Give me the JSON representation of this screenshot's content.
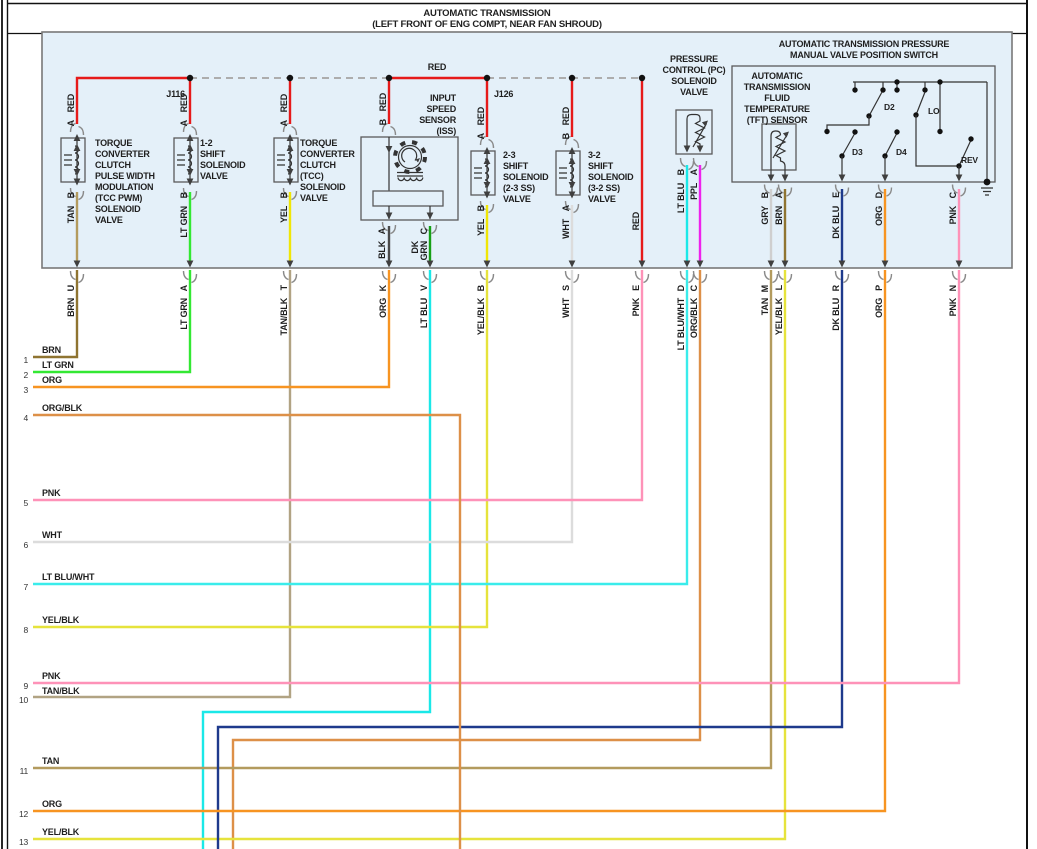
{
  "page": {
    "title_line1": "AUTOMATIC TRANSMISSION",
    "title_line2": "(LEFT FRONT OF ENG COMPT, NEAR FAN SHROUD)"
  },
  "junctions": {
    "j116": "J116",
    "j126": "J126",
    "bus_label": "RED"
  },
  "colors": {
    "red": "#e61a1a",
    "brn": "#8f7431",
    "lt_grn": "#33e833",
    "tan_blk": "#b1a383",
    "org": "#f79421",
    "lt_blu": "#1ae8e8",
    "lt_blu_wht": "#3aeceb",
    "yel_blk": "#e6e33c",
    "wht": "#dcdcdc",
    "pnk": "#fe92b8",
    "org_blk": "#dd9048",
    "tan": "#b39b5e",
    "dk_blu": "#1e3a8c",
    "ppl": "#ee22ee",
    "gry": "#cfcfcf",
    "dk_grn": "#16a016",
    "yel": "#f0e607",
    "blk": "#4a4a4a",
    "box_fill": "#e4f0f9"
  },
  "components": {
    "tcc_pwm": {
      "lines": [
        "TORQUE",
        "CONVERTER",
        "CLUTCH",
        "PULSE WIDTH",
        "MODULATION",
        "(TCC PWM)",
        "SOLENOID",
        "VALVE"
      ]
    },
    "shift12": {
      "lines": [
        "1-2",
        "SHIFT",
        "SOLENOID",
        "VALVE"
      ]
    },
    "tcc": {
      "lines": [
        "TORQUE",
        "CONVERTER",
        "CLUTCH",
        "(TCC)",
        "SOLENOID",
        "VALVE"
      ]
    },
    "iss": {
      "lines": [
        "INPUT",
        "SPEED",
        "SENSOR",
        "(ISS)"
      ]
    },
    "shift23": {
      "lines": [
        "2-3",
        "SHIFT",
        "SOLENOID",
        "(2-3 SS)",
        "VALVE"
      ]
    },
    "shift32": {
      "lines": [
        "3-2",
        "SHIFT",
        "SOLENOID",
        "(3-2 SS)",
        "VALVE"
      ]
    },
    "pc": {
      "lines": [
        "PRESSURE",
        "CONTROL (PC)",
        "SOLENOID",
        "VALVE"
      ]
    },
    "mvps": {
      "lines": [
        "AUTOMATIC TRANSMISSION PRESSURE",
        "MANUAL VALVE POSITION SWITCH"
      ]
    },
    "tft": {
      "lines": [
        "AUTOMATIC",
        "TRANSMISSION",
        "FLUID",
        "TEMPERATURE",
        "(TFT) SENSOR"
      ]
    },
    "switch_positions": {
      "d2": "D2",
      "lo": "LO",
      "d3": "D3",
      "d4": "D4",
      "rev": "REV"
    }
  },
  "top_pins": [
    {
      "pin": "A",
      "color": "RED"
    },
    {
      "pin": "A",
      "color": "RED"
    },
    {
      "pin": "A",
      "color": "RED"
    },
    {
      "pin": "B",
      "color": "RED"
    },
    {
      "pin": "A",
      "color": "RED"
    },
    {
      "pin": "B",
      "color": "RED"
    }
  ],
  "device_pins": [
    {
      "pin": "B",
      "color": "TAN"
    },
    {
      "pin": "B",
      "color": "LT GRN"
    },
    {
      "pin": "B",
      "color": "YEL"
    },
    {
      "pin": "A",
      "color": "BLK"
    },
    {
      "pin": "C",
      "color": "DK GRN",
      "color_lines": [
        "DK",
        "GRN"
      ]
    },
    {
      "pin": "B",
      "color": "YEL"
    },
    {
      "pin": "A",
      "color": "WHT"
    },
    {
      "pin": "",
      "color": "RED"
    },
    {
      "pin": "B",
      "color": "LT BLU"
    },
    {
      "pin": "A",
      "color": "PPL"
    },
    {
      "pin": "B",
      "color": "GRY"
    },
    {
      "pin": "A",
      "color": "BRN"
    },
    {
      "pin": "E",
      "color": "DK BLU"
    },
    {
      "pin": "D",
      "color": "ORG"
    },
    {
      "pin": "C",
      "color": "PNK"
    }
  ],
  "harness_wires": [
    {
      "pin": "U",
      "color": "BRN"
    },
    {
      "pin": "A",
      "color": "LT GRN"
    },
    {
      "pin": "T",
      "color": "TAN/BLK"
    },
    {
      "pin": "K",
      "color": "ORG"
    },
    {
      "pin": "V",
      "color": "LT BLU"
    },
    {
      "pin": "B",
      "color": "YEL/BLK"
    },
    {
      "pin": "S",
      "color": "WHT"
    },
    {
      "pin": "E",
      "color": "PNK"
    },
    {
      "pin": "D",
      "color": "LT BLU/WHT"
    },
    {
      "pin": "C",
      "color": "ORG/BLK"
    },
    {
      "pin": "M",
      "color": "TAN"
    },
    {
      "pin": "L",
      "color": "YEL/BLK"
    },
    {
      "pin": "R",
      "color": "DK BLU"
    },
    {
      "pin": "P",
      "color": "ORG"
    },
    {
      "pin": "N",
      "color": "PNK"
    }
  ],
  "circuits": [
    {
      "num": "1",
      "label": "BRN"
    },
    {
      "num": "2",
      "label": "LT GRN"
    },
    {
      "num": "3",
      "label": "ORG"
    },
    {
      "num": "4",
      "label": "ORG/BLK"
    },
    {
      "num": "5",
      "label": "PNK"
    },
    {
      "num": "6",
      "label": "WHT"
    },
    {
      "num": "7",
      "label": "LT BLU/WHT"
    },
    {
      "num": "8",
      "label": "YEL/BLK"
    },
    {
      "num": "9",
      "label": "PNK"
    },
    {
      "num": "10",
      "label": "TAN/BLK"
    },
    {
      "num": "11",
      "label": "TAN"
    },
    {
      "num": "12",
      "label": "ORG"
    },
    {
      "num": "13",
      "label": "YEL/BLK"
    }
  ]
}
